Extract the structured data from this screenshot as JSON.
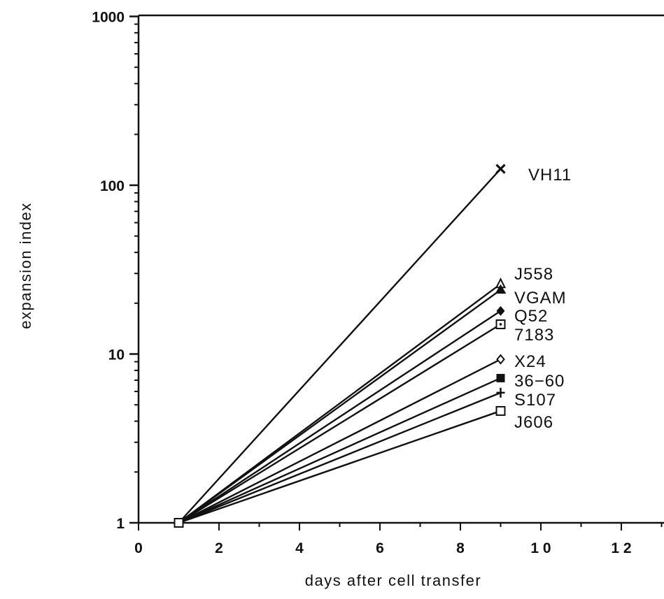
{
  "chart_data": {
    "type": "line",
    "title": "",
    "xlabel": "days after cell transfer",
    "ylabel": "expansion index",
    "xlim": [
      0,
      13
    ],
    "ylim": [
      1,
      1000
    ],
    "y_scale": "log",
    "x_ticks": [
      0,
      2,
      4,
      6,
      8,
      10,
      12
    ],
    "x_tick_labels": [
      "0",
      "2",
      "4",
      "6",
      "8",
      "1 0",
      "1 2"
    ],
    "y_ticks": [
      1,
      10,
      100,
      1000
    ],
    "y_tick_labels": [
      "1",
      "10",
      "100",
      "1000"
    ],
    "grid": false,
    "legend": "inline labels at line ends",
    "series": [
      {
        "name": "VH11",
        "marker": "x",
        "x": [
          1,
          9
        ],
        "y": [
          1,
          125
        ]
      },
      {
        "name": "J558",
        "marker": "open-triangle",
        "x": [
          1,
          9
        ],
        "y": [
          1,
          26
        ]
      },
      {
        "name": "VGAM",
        "marker": "filled-triangle",
        "x": [
          1,
          9
        ],
        "y": [
          1,
          24
        ]
      },
      {
        "name": "Q52",
        "marker": "filled-diamond",
        "x": [
          1,
          9
        ],
        "y": [
          1,
          18
        ]
      },
      {
        "name": "7183",
        "marker": "dotted-square",
        "x": [
          1,
          9
        ],
        "y": [
          1,
          15
        ]
      },
      {
        "name": "X24",
        "marker": "open-diamond",
        "x": [
          1,
          9
        ],
        "y": [
          1,
          9.3
        ]
      },
      {
        "name": "36-60",
        "marker": "filled-square",
        "x": [
          1,
          9
        ],
        "y": [
          1,
          7.2
        ]
      },
      {
        "name": "S107",
        "marker": "plus",
        "x": [
          1,
          9
        ],
        "y": [
          1,
          5.9
        ]
      },
      {
        "name": "J606",
        "marker": "open-square",
        "x": [
          1,
          9
        ],
        "y": [
          1,
          4.6
        ]
      }
    ]
  }
}
